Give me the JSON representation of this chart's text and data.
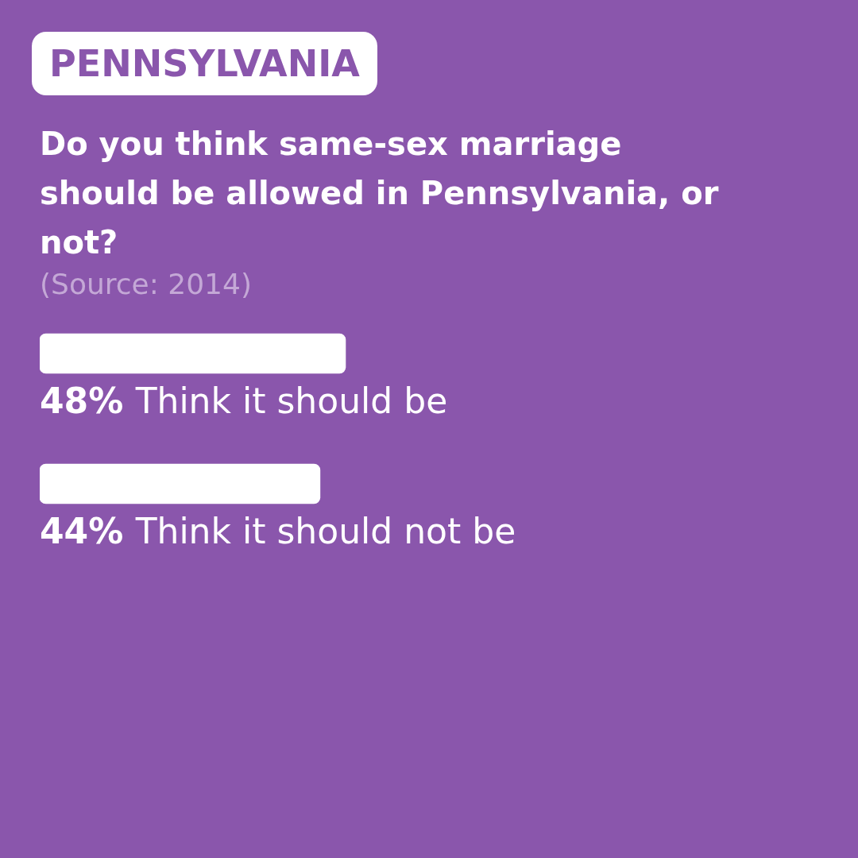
{
  "chart_data": {
    "type": "bar",
    "orientation": "horizontal",
    "title": "PENNSYLVANIA",
    "subtitle": "Do you think same-sex marriage should be allowed in Pennsylvania, or not?",
    "annotations": [
      "(Source: 2014)"
    ],
    "categories": [
      "Think it should be",
      "Think it should not be"
    ],
    "values": [
      48,
      44
    ],
    "value_labels": [
      "48%",
      "44%"
    ],
    "color": "#ffffff",
    "legend": false
  }
}
